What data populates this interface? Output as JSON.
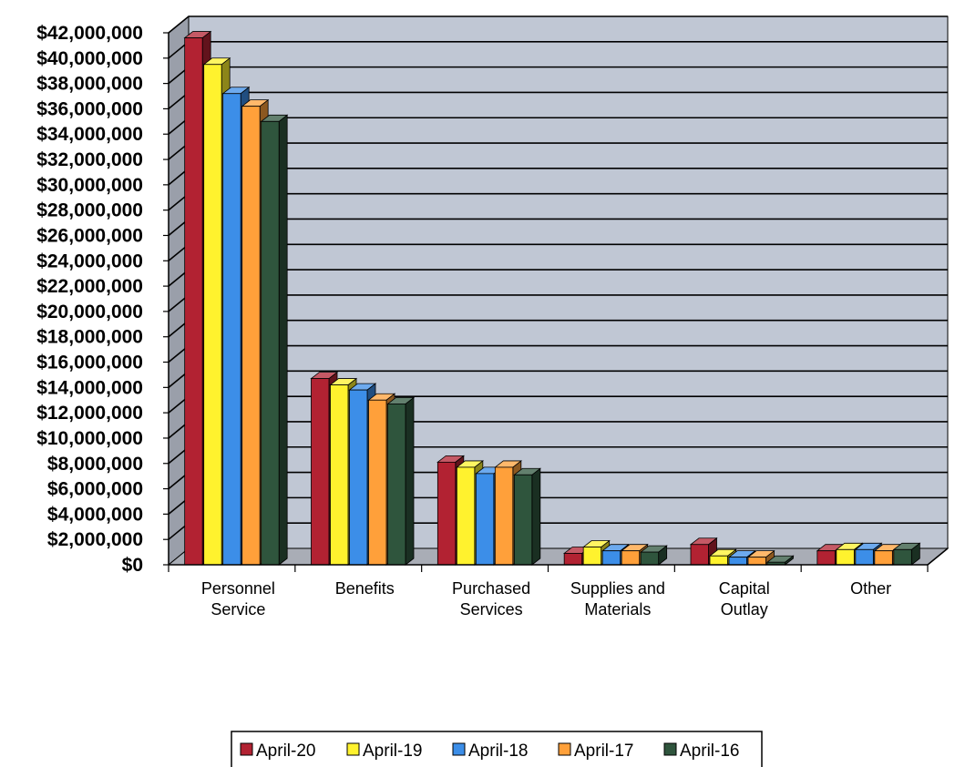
{
  "chart_data": {
    "type": "bar",
    "title": "",
    "xlabel": "",
    "ylabel": "",
    "ylim": [
      0,
      42000000
    ],
    "ytick_step": 2000000,
    "grid": true,
    "legend_position": "bottom",
    "categories": [
      [
        "Personnel",
        "Service"
      ],
      [
        "Benefits"
      ],
      [
        "Purchased",
        "Services"
      ],
      [
        "Supplies and",
        "Materials"
      ],
      [
        "Capital",
        "Outlay"
      ],
      [
        "Other"
      ]
    ],
    "series": [
      {
        "name": "April-20",
        "color": "#b22232",
        "values": [
          41600000,
          14700000,
          8100000,
          900000,
          1600000,
          1100000
        ]
      },
      {
        "name": "April-19",
        "color": "#fff22e",
        "values": [
          39500000,
          14200000,
          7700000,
          1400000,
          700000,
          1200000
        ]
      },
      {
        "name": "April-18",
        "color": "#3c8ee8",
        "values": [
          37200000,
          13800000,
          7200000,
          1100000,
          600000,
          1200000
        ]
      },
      {
        "name": "April-17",
        "color": "#ffa03a",
        "values": [
          36200000,
          13000000,
          7700000,
          1100000,
          600000,
          1100000
        ]
      },
      {
        "name": "April-16",
        "color": "#2f553d",
        "values": [
          35000000,
          12700000,
          7100000,
          1000000,
          200000,
          1200000
        ]
      }
    ],
    "y_ticks": [
      "$0",
      "$2,000,000",
      "$4,000,000",
      "$6,000,000",
      "$8,000,000",
      "$10,000,000",
      "$12,000,000",
      "$14,000,000",
      "$16,000,000",
      "$18,000,000",
      "$20,000,000",
      "$22,000,000",
      "$24,000,000",
      "$26,000,000",
      "$28,000,000",
      "$30,000,000",
      "$32,000,000",
      "$34,000,000",
      "$36,000,000",
      "$38,000,000",
      "$40,000,000",
      "$42,000,000"
    ],
    "colors": {
      "wall": "#c0c7d4",
      "floor": "#a9adb6",
      "grid": "#000000"
    }
  }
}
